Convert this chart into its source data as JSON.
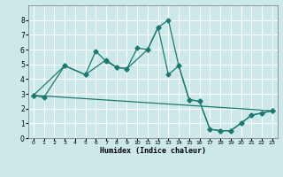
{
  "xlabel": "Humidex (Indice chaleur)",
  "bg_color": "#cce8e8",
  "line_color": "#1a7a6e",
  "grid_color": "#ffffff",
  "xlim": [
    -0.5,
    23.5
  ],
  "ylim": [
    0,
    9
  ],
  "xticks": [
    0,
    1,
    2,
    3,
    4,
    5,
    6,
    7,
    8,
    9,
    10,
    11,
    12,
    13,
    14,
    15,
    16,
    17,
    18,
    19,
    20,
    21,
    22,
    23
  ],
  "yticks": [
    0,
    1,
    2,
    3,
    4,
    5,
    6,
    7,
    8
  ],
  "line1_x": [
    0,
    1,
    3,
    5,
    6,
    7,
    8,
    9,
    10,
    11,
    12,
    13,
    14,
    15,
    16,
    17,
    18,
    19,
    20,
    21,
    22,
    23
  ],
  "line1_y": [
    2.9,
    2.75,
    4.9,
    4.3,
    5.9,
    5.2,
    4.8,
    4.7,
    6.1,
    6.0,
    7.5,
    8.0,
    4.9,
    2.6,
    2.5,
    0.6,
    0.5,
    0.5,
    1.0,
    1.55,
    1.7,
    1.85
  ],
  "line2_x": [
    0,
    3,
    5,
    7,
    8,
    9,
    11,
    12,
    13,
    14,
    15,
    16,
    17,
    18,
    19,
    20,
    21,
    22,
    23
  ],
  "line2_y": [
    2.9,
    4.9,
    4.3,
    5.3,
    4.8,
    4.7,
    6.0,
    7.5,
    4.3,
    4.9,
    2.6,
    2.5,
    0.6,
    0.5,
    0.5,
    1.0,
    1.55,
    1.7,
    1.85
  ],
  "line3_x": [
    0,
    23
  ],
  "line3_y": [
    2.9,
    1.85
  ],
  "markersize": 2.5,
  "linewidth": 0.9
}
